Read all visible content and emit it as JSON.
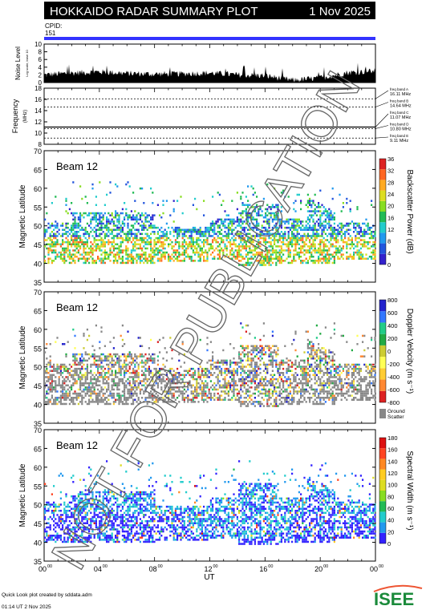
{
  "header": {
    "title": "HOKKAIDO RADAR SUMMARY PLOT",
    "date": "1 Nov 2025"
  },
  "cpid": {
    "label": "CPID:",
    "value": "151"
  },
  "noise_panel": {
    "ylabel": "Noise Level",
    "ylabel_sub": "Log scale, base 10",
    "ticks": [
      "0",
      "2",
      "4",
      "6",
      "8",
      "10"
    ]
  },
  "freq_panel": {
    "ylabel": "Frequency",
    "ylabel_sub": "(MHz)",
    "ticks": [
      "8",
      "10",
      "12",
      "14",
      "16",
      "18"
    ],
    "bands": [
      {
        "label": "freq band A",
        "value": "16.11 MHz",
        "mhz": 16.11
      },
      {
        "label": "freq band B",
        "value": "14.64 MHz",
        "mhz": 14.64
      },
      {
        "label": "freq band C",
        "value": "11.07 MHz",
        "mhz": 11.07
      },
      {
        "label": "freq band D",
        "value": "10.80 MHz",
        "mhz": 10.8
      },
      {
        "label": "freq band E",
        "value": "9.11 MHz",
        "mhz": 9.11
      }
    ]
  },
  "panels": [
    {
      "beam": "Beam 12",
      "ylabel": "Magnetic Latitude",
      "cbar_label": "Backscatter Power (dB)",
      "cbar_ticks": [
        "0",
        "4",
        "8",
        "12",
        "16",
        "20",
        "24",
        "28",
        "32",
        "36"
      ],
      "palette": "power"
    },
    {
      "beam": "Beam 12",
      "ylabel": "Magnetic Latitude",
      "cbar_label": "Doppler Velocity (m s⁻¹)",
      "cbar_ticks": [
        "-800",
        "-600",
        "-400",
        "-200",
        "0",
        "200",
        "400",
        "600",
        "800"
      ],
      "ground_label": "Ground",
      "ground_label2": "Scatter",
      "palette": "velocity"
    },
    {
      "beam": "Beam 12",
      "ylabel": "Magnetic Latitude",
      "cbar_label": "Spectral Width (m s⁻¹)",
      "cbar_ticks": [
        "0",
        "20",
        "40",
        "60",
        "80",
        "100",
        "120",
        "140",
        "160",
        "180"
      ],
      "palette": "width"
    }
  ],
  "lat_ticks": [
    "35",
    "40",
    "45",
    "50",
    "55",
    "60",
    "65",
    "70"
  ],
  "x_ticks": [
    "00",
    "04",
    "08",
    "12",
    "16",
    "20",
    "00"
  ],
  "x_sup": "00",
  "xlabel": "UT",
  "watermark": "NOT FOR PUBLICATION",
  "footer": {
    "line1": "Quick Look plot created by sddata.adm",
    "line2": "01:14 UT 2 Nov 2025"
  },
  "logo": {
    "text": "ISEE"
  },
  "chart_data": [
    {
      "type": "area",
      "title": "Noise Level",
      "xlabel": "UT",
      "ylabel": "Noise Level",
      "xlim": [
        0,
        24
      ],
      "ylim": [
        0,
        10
      ],
      "x": [
        0,
        2,
        4,
        6,
        8,
        10,
        12,
        14,
        16,
        18,
        20,
        22,
        24
      ],
      "values": [
        2.0,
        2.5,
        2.8,
        2.4,
        2.2,
        2.3,
        2.5,
        2.0,
        1.8,
        0.6,
        1.2,
        2.6,
        3.0
      ]
    },
    {
      "type": "scatter",
      "title": "Frequency",
      "ylabel": "Frequency (MHz)",
      "xlim": [
        0,
        24
      ],
      "ylim": [
        8,
        18
      ],
      "series": [
        {
          "name": "freq band C",
          "values": [
            11.07
          ]
        }
      ]
    },
    {
      "type": "heatmap",
      "title": "Backscatter Power (dB)",
      "ylabel": "Magnetic Latitude",
      "xlabel": "UT",
      "xlim": [
        0,
        24
      ],
      "ylim": [
        35,
        70
      ],
      "zlim": [
        0,
        36
      ]
    },
    {
      "type": "heatmap",
      "title": "Doppler Velocity (m s⁻¹)",
      "ylabel": "Magnetic Latitude",
      "xlabel": "UT",
      "xlim": [
        0,
        24
      ],
      "ylim": [
        35,
        70
      ],
      "zlim": [
        -800,
        800
      ]
    },
    {
      "type": "heatmap",
      "title": "Spectral Width (m s⁻¹)",
      "ylabel": "Magnetic Latitude",
      "xlabel": "UT",
      "xlim": [
        0,
        24
      ],
      "ylim": [
        35,
        70
      ],
      "zlim": [
        0,
        180
      ]
    }
  ]
}
